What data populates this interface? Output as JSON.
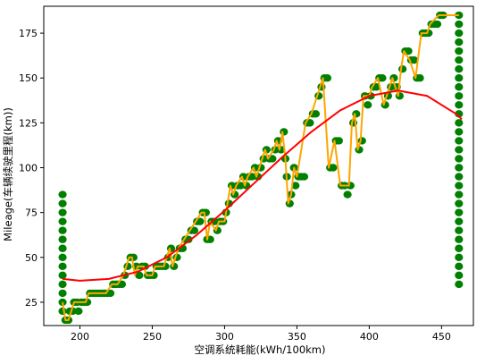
{
  "chart_data": {
    "type": "scatter",
    "title": "",
    "xlabel": "空调系统耗能(kWh/100km)",
    "ylabel": "Mileage(车辆续驶里程(km))",
    "xlim": [
      175,
      472
    ],
    "ylim": [
      12,
      190
    ],
    "grid": false,
    "xticks": [
      200,
      250,
      300,
      350,
      400,
      450
    ],
    "yticks": [
      25,
      50,
      75,
      100,
      125,
      150,
      175
    ],
    "colors": {
      "points": "#008000",
      "observed_line": "#ffa500",
      "fitted_curve": "#ff0000",
      "axis": "#000000"
    },
    "series": [
      {
        "kind": "scatter",
        "points": [
          [
            188,
            85
          ],
          [
            188,
            80
          ],
          [
            188,
            75
          ],
          [
            188,
            70
          ],
          [
            188,
            65
          ],
          [
            188,
            60
          ],
          [
            188,
            55
          ],
          [
            188,
            50
          ],
          [
            188,
            45
          ],
          [
            188,
            40
          ],
          [
            188,
            35
          ],
          [
            188,
            30
          ],
          [
            188,
            25
          ],
          [
            188,
            20
          ],
          [
            190,
            15
          ],
          [
            192,
            15
          ],
          [
            193,
            20
          ],
          [
            195,
            20
          ],
          [
            196,
            25
          ],
          [
            198,
            25
          ],
          [
            199,
            20
          ],
          [
            201,
            25
          ],
          [
            203,
            25
          ],
          [
            205,
            25
          ],
          [
            207,
            30
          ],
          [
            209,
            30
          ],
          [
            211,
            30
          ],
          [
            213,
            30
          ],
          [
            215,
            30
          ],
          [
            217,
            30
          ],
          [
            219,
            30
          ],
          [
            221,
            30
          ],
          [
            223,
            35
          ],
          [
            225,
            35
          ],
          [
            227,
            35
          ],
          [
            229,
            35
          ],
          [
            231,
            40
          ],
          [
            233,
            45
          ],
          [
            235,
            50
          ],
          [
            237,
            50
          ],
          [
            239,
            45
          ],
          [
            241,
            40
          ],
          [
            243,
            45
          ],
          [
            245,
            45
          ],
          [
            247,
            40
          ],
          [
            249,
            40
          ],
          [
            251,
            40
          ],
          [
            253,
            45
          ],
          [
            255,
            45
          ],
          [
            257,
            45
          ],
          [
            259,
            45
          ],
          [
            261,
            50
          ],
          [
            263,
            55
          ],
          [
            265,
            45
          ],
          [
            267,
            50
          ],
          [
            269,
            55
          ],
          [
            271,
            55
          ],
          [
            273,
            60
          ],
          [
            275,
            60
          ],
          [
            277,
            65
          ],
          [
            279,
            65
          ],
          [
            281,
            70
          ],
          [
            283,
            70
          ],
          [
            285,
            75
          ],
          [
            287,
            75
          ],
          [
            288,
            60
          ],
          [
            290,
            60
          ],
          [
            291,
            70
          ],
          [
            293,
            70
          ],
          [
            295,
            65
          ],
          [
            297,
            70
          ],
          [
            299,
            70
          ],
          [
            301,
            75
          ],
          [
            303,
            80
          ],
          [
            305,
            90
          ],
          [
            307,
            85
          ],
          [
            309,
            90
          ],
          [
            311,
            90
          ],
          [
            313,
            95
          ],
          [
            315,
            90
          ],
          [
            317,
            95
          ],
          [
            319,
            95
          ],
          [
            321,
            100
          ],
          [
            323,
            95
          ],
          [
            325,
            100
          ],
          [
            327,
            105
          ],
          [
            329,
            110
          ],
          [
            331,
            105
          ],
          [
            333,
            105
          ],
          [
            335,
            110
          ],
          [
            337,
            115
          ],
          [
            339,
            110
          ],
          [
            341,
            120
          ],
          [
            342,
            105
          ],
          [
            343,
            95
          ],
          [
            345,
            80
          ],
          [
            346,
            85
          ],
          [
            348,
            100
          ],
          [
            349,
            90
          ],
          [
            351,
            95
          ],
          [
            353,
            95
          ],
          [
            355,
            95
          ],
          [
            357,
            125
          ],
          [
            359,
            125
          ],
          [
            361,
            130
          ],
          [
            363,
            130
          ],
          [
            365,
            140
          ],
          [
            367,
            145
          ],
          [
            369,
            150
          ],
          [
            371,
            150
          ],
          [
            373,
            100
          ],
          [
            375,
            100
          ],
          [
            377,
            115
          ],
          [
            379,
            115
          ],
          [
            381,
            90
          ],
          [
            383,
            90
          ],
          [
            385,
            85
          ],
          [
            387,
            90
          ],
          [
            389,
            125
          ],
          [
            391,
            130
          ],
          [
            393,
            110
          ],
          [
            395,
            115
          ],
          [
            397,
            140
          ],
          [
            399,
            135
          ],
          [
            401,
            140
          ],
          [
            403,
            145
          ],
          [
            405,
            145
          ],
          [
            407,
            150
          ],
          [
            409,
            150
          ],
          [
            411,
            135
          ],
          [
            413,
            140
          ],
          [
            415,
            145
          ],
          [
            417,
            150
          ],
          [
            419,
            145
          ],
          [
            421,
            140
          ],
          [
            423,
            155
          ],
          [
            425,
            165
          ],
          [
            427,
            165
          ],
          [
            429,
            160
          ],
          [
            431,
            160
          ],
          [
            433,
            150
          ],
          [
            435,
            150
          ],
          [
            437,
            175
          ],
          [
            439,
            175
          ],
          [
            441,
            175
          ],
          [
            443,
            180
          ],
          [
            445,
            180
          ],
          [
            447,
            180
          ],
          [
            449,
            185
          ],
          [
            451,
            185
          ],
          [
            462,
            185
          ],
          [
            462,
            180
          ],
          [
            462,
            175
          ],
          [
            462,
            170
          ],
          [
            462,
            165
          ],
          [
            462,
            160
          ],
          [
            462,
            155
          ],
          [
            462,
            150
          ],
          [
            462,
            145
          ],
          [
            462,
            140
          ],
          [
            462,
            135
          ],
          [
            462,
            130
          ],
          [
            462,
            125
          ],
          [
            462,
            120
          ],
          [
            462,
            115
          ],
          [
            462,
            110
          ],
          [
            462,
            105
          ],
          [
            462,
            100
          ],
          [
            462,
            95
          ],
          [
            462,
            90
          ],
          [
            462,
            85
          ],
          [
            462,
            80
          ],
          [
            462,
            75
          ],
          [
            462,
            70
          ],
          [
            462,
            65
          ],
          [
            462,
            60
          ],
          [
            462,
            55
          ],
          [
            462,
            50
          ],
          [
            462,
            45
          ],
          [
            462,
            40
          ],
          [
            462,
            35
          ]
        ]
      },
      {
        "kind": "step-line",
        "points": [
          [
            188,
            25
          ],
          [
            190,
            15
          ],
          [
            192,
            15
          ],
          [
            194,
            20
          ],
          [
            196,
            25
          ],
          [
            198,
            25
          ],
          [
            200,
            25
          ],
          [
            202,
            25
          ],
          [
            204,
            25
          ],
          [
            206,
            30
          ],
          [
            210,
            30
          ],
          [
            214,
            30
          ],
          [
            218,
            30
          ],
          [
            222,
            35
          ],
          [
            226,
            35
          ],
          [
            230,
            40
          ],
          [
            232,
            45
          ],
          [
            234,
            50
          ],
          [
            236,
            50
          ],
          [
            238,
            40
          ],
          [
            240,
            45
          ],
          [
            244,
            45
          ],
          [
            246,
            40
          ],
          [
            250,
            40
          ],
          [
            252,
            45
          ],
          [
            258,
            45
          ],
          [
            260,
            50
          ],
          [
            262,
            55
          ],
          [
            264,
            45
          ],
          [
            266,
            50
          ],
          [
            268,
            55
          ],
          [
            272,
            60
          ],
          [
            276,
            65
          ],
          [
            280,
            70
          ],
          [
            284,
            75
          ],
          [
            286,
            75
          ],
          [
            288,
            60
          ],
          [
            290,
            70
          ],
          [
            294,
            65
          ],
          [
            296,
            70
          ],
          [
            300,
            70
          ],
          [
            302,
            80
          ],
          [
            304,
            90
          ],
          [
            306,
            85
          ],
          [
            308,
            90
          ],
          [
            312,
            95
          ],
          [
            314,
            90
          ],
          [
            316,
            95
          ],
          [
            320,
            100
          ],
          [
            322,
            95
          ],
          [
            324,
            100
          ],
          [
            326,
            105
          ],
          [
            328,
            110
          ],
          [
            330,
            105
          ],
          [
            334,
            110
          ],
          [
            336,
            115
          ],
          [
            338,
            110
          ],
          [
            340,
            120
          ],
          [
            342,
            105
          ],
          [
            344,
            80
          ],
          [
            346,
            85
          ],
          [
            348,
            100
          ],
          [
            350,
            95
          ],
          [
            356,
            125
          ],
          [
            360,
            130
          ],
          [
            364,
            140
          ],
          [
            366,
            145
          ],
          [
            368,
            150
          ],
          [
            372,
            100
          ],
          [
            376,
            115
          ],
          [
            380,
            90
          ],
          [
            386,
            90
          ],
          [
            388,
            125
          ],
          [
            390,
            130
          ],
          [
            392,
            110
          ],
          [
            394,
            115
          ],
          [
            396,
            140
          ],
          [
            400,
            140
          ],
          [
            402,
            145
          ],
          [
            406,
            150
          ],
          [
            410,
            135
          ],
          [
            412,
            140
          ],
          [
            414,
            145
          ],
          [
            416,
            150
          ],
          [
            418,
            145
          ],
          [
            420,
            140
          ],
          [
            422,
            155
          ],
          [
            424,
            165
          ],
          [
            428,
            160
          ],
          [
            432,
            150
          ],
          [
            436,
            175
          ],
          [
            440,
            175
          ],
          [
            442,
            180
          ],
          [
            448,
            185
          ],
          [
            452,
            185
          ],
          [
            462,
            185
          ]
        ]
      },
      {
        "kind": "fitted-curve",
        "points": [
          [
            188,
            38
          ],
          [
            200,
            37
          ],
          [
            220,
            38
          ],
          [
            240,
            42
          ],
          [
            260,
            50
          ],
          [
            280,
            62
          ],
          [
            300,
            76
          ],
          [
            320,
            91
          ],
          [
            340,
            106
          ],
          [
            360,
            120
          ],
          [
            380,
            132
          ],
          [
            400,
            140
          ],
          [
            420,
            143
          ],
          [
            440,
            140
          ],
          [
            460,
            130
          ],
          [
            464,
            127
          ]
        ]
      }
    ]
  }
}
